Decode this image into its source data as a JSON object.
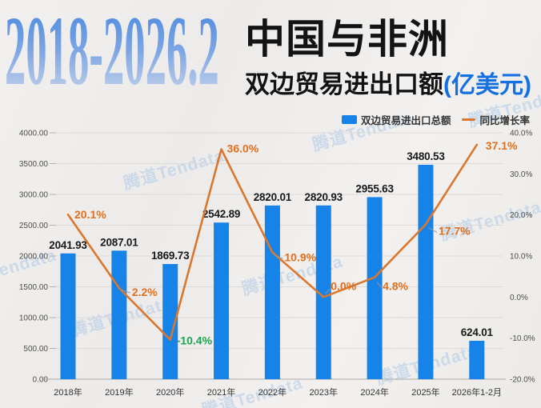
{
  "header": {
    "year_range": "2018-2026.2",
    "title_line1": "中国与非洲",
    "title_line2": "双边贸易进出口额",
    "title_unit": "(亿美元)"
  },
  "watermark": {
    "text": "腾道Tendata",
    "color": "#adc9e8"
  },
  "legend": [
    {
      "label": "双边贸易进出口总额",
      "type": "bar",
      "color": "#1583e8"
    },
    {
      "label": "同比增长率",
      "type": "line",
      "color": "#d9772e"
    }
  ],
  "chart_data": {
    "type": "bar+line",
    "title": "2018-2026.2 中国与非洲双边贸易进出口额(亿美元)",
    "categories": [
      "2018年",
      "2019年",
      "2020年",
      "2021年",
      "2022年",
      "2023年",
      "2024年",
      "2025年",
      "2026年1-2月"
    ],
    "series": [
      {
        "name": "双边贸易进出口总额",
        "type": "bar",
        "axis": "left",
        "color": "#1583e8",
        "values": [
          2041.93,
          2087.01,
          1869.73,
          2542.89,
          2820.01,
          2820.93,
          2955.63,
          3480.53,
          624.01
        ],
        "value_labels": [
          "2041.93",
          "2087.01",
          "1869.73",
          "2542.89",
          "2820.01",
          "2820.93",
          "2955.63",
          "3480.53",
          "624.01"
        ]
      },
      {
        "name": "同比增长率",
        "type": "line",
        "axis": "right",
        "color": "#d9772e",
        "values": [
          20.1,
          2.2,
          -10.4,
          36.0,
          10.9,
          0.0,
          4.8,
          17.7,
          37.1
        ],
        "value_labels": [
          "20.1%",
          "2.2%",
          "-10.4%",
          "36.0%",
          "10.9%",
          "0.0%",
          "4.8%",
          "17.7%",
          "37.1%"
        ],
        "label_colors": [
          "#e0701e",
          "#e0701e",
          "#1ea455",
          "#e0701e",
          "#e0701e",
          "#e0701e",
          "#e0701e",
          "#e0701e",
          "#e0701e"
        ]
      }
    ],
    "left_axis": {
      "min": 0,
      "max": 4000,
      "ticks": [
        "4000.00",
        "3500.00",
        "3000.00",
        "2500.00",
        "2000.00",
        "1500.00",
        "1000.00",
        "500.00",
        "0.00"
      ]
    },
    "right_axis": {
      "min": -20,
      "max": 40,
      "ticks": [
        "40.0%",
        "30.0%",
        "20.0%",
        "10.0%",
        "0.0%",
        "-10.0%",
        "-20.0%"
      ]
    },
    "grid": "horizontal",
    "legend_position": "top-right"
  }
}
